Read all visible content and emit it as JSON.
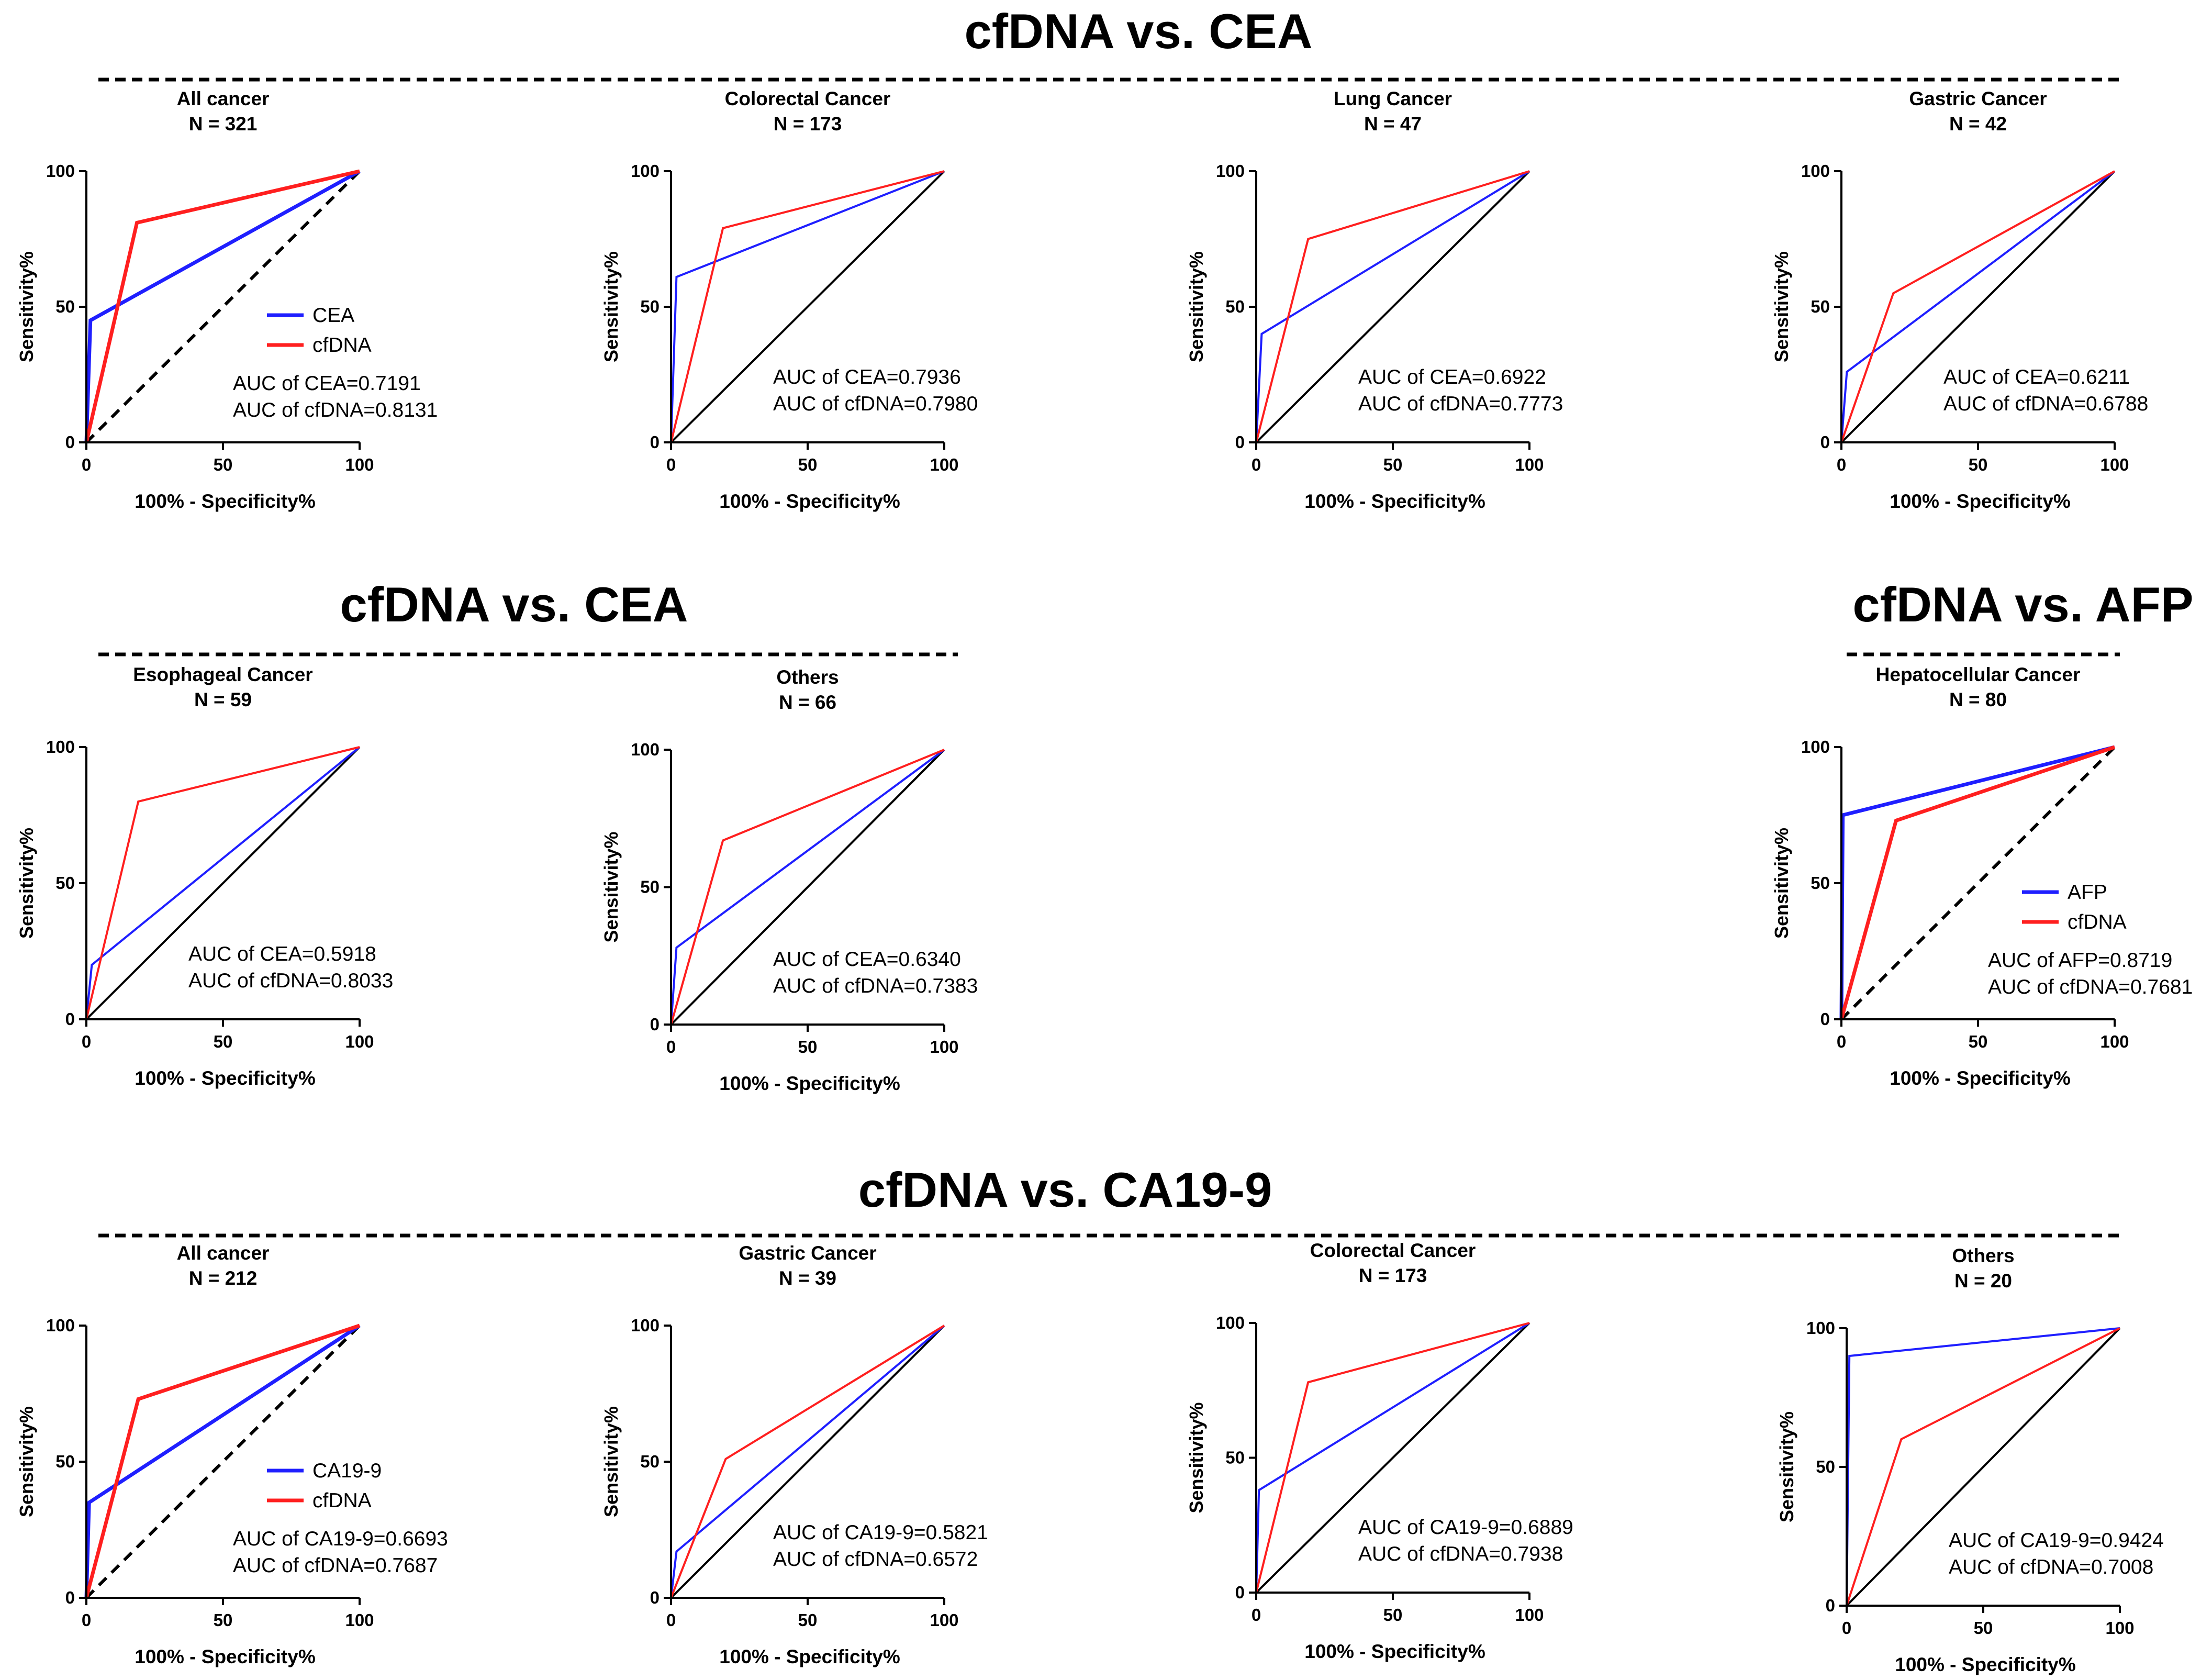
{
  "colors": {
    "cea": "#1f1fff",
    "cfdna": "#ff1f1f",
    "ref": "#000000"
  },
  "sections": [
    {
      "title": "cfDNA vs. CEA"
    },
    {
      "title": "cfDNA vs. CEA"
    },
    {
      "title": "cfDNA vs. AFP"
    },
    {
      "title": "cfDNA vs. CA19-9"
    }
  ],
  "chart_data": [
    {
      "type": "line",
      "section": 0,
      "title": "All cancer",
      "n": "N = 321",
      "xlabel": "100% - Specificity%",
      "ylabel": "Sensitivity%",
      "xlim": [
        0,
        100
      ],
      "ylim": [
        0,
        100
      ],
      "x_ticks": [
        "0",
        "50",
        "100"
      ],
      "y_ticks": [
        "0",
        "50",
        "100"
      ],
      "diagonal": "dashed",
      "thick": true,
      "series": [
        {
          "name": "CEA",
          "color": "#1f1fff",
          "x": [
            0,
            1.5,
            100
          ],
          "y": [
            0,
            45,
            100
          ]
        },
        {
          "name": "cfDNA",
          "color": "#ff1f1f",
          "x": [
            0,
            18.5,
            100
          ],
          "y": [
            0,
            81,
            100
          ]
        }
      ],
      "legend": [
        "CEA",
        "cfDNA"
      ],
      "auc": [
        "AUC of CEA=0.7191",
        "AUC of cfDNA=0.8131"
      ]
    },
    {
      "type": "line",
      "section": 0,
      "title": "Colorectal Cancer",
      "n": "N = 173",
      "xlabel": "100% - Specificity%",
      "ylabel": "Sensitivity%",
      "xlim": [
        0,
        100
      ],
      "ylim": [
        0,
        100
      ],
      "x_ticks": [
        "0",
        "50",
        "100"
      ],
      "y_ticks": [
        "0",
        "50",
        "100"
      ],
      "diagonal": "solid",
      "thick": false,
      "series": [
        {
          "name": "CEA",
          "color": "#1f1fff",
          "x": [
            0,
            2,
            100
          ],
          "y": [
            0,
            61,
            100
          ]
        },
        {
          "name": "cfDNA",
          "color": "#ff1f1f",
          "x": [
            0,
            19,
            100
          ],
          "y": [
            0,
            79,
            100
          ]
        }
      ],
      "legend": [],
      "auc": [
        "AUC of CEA=0.7936",
        "AUC of cfDNA=0.7980"
      ]
    },
    {
      "type": "line",
      "section": 0,
      "title": "Lung Cancer",
      "n": "N = 47",
      "xlabel": "100% - Specificity%",
      "ylabel": "Sensitivity%",
      "xlim": [
        0,
        100
      ],
      "ylim": [
        0,
        100
      ],
      "x_ticks": [
        "0",
        "50",
        "100"
      ],
      "y_ticks": [
        "0",
        "50",
        "100"
      ],
      "diagonal": "solid",
      "thick": false,
      "series": [
        {
          "name": "CEA",
          "color": "#1f1fff",
          "x": [
            0,
            2,
            100
          ],
          "y": [
            0,
            40,
            100
          ]
        },
        {
          "name": "cfDNA",
          "color": "#ff1f1f",
          "x": [
            0,
            19,
            100
          ],
          "y": [
            0,
            75,
            100
          ]
        }
      ],
      "legend": [],
      "auc": [
        "AUC of CEA=0.6922",
        "AUC of cfDNA=0.7773"
      ]
    },
    {
      "type": "line",
      "section": 0,
      "title": "Gastric Cancer",
      "n": "N = 42",
      "xlabel": "100% - Specificity%",
      "ylabel": "Sensitivity%",
      "xlim": [
        0,
        100
      ],
      "ylim": [
        0,
        100
      ],
      "x_ticks": [
        "0",
        "50",
        "100"
      ],
      "y_ticks": [
        "0",
        "50",
        "100"
      ],
      "diagonal": "solid",
      "thick": false,
      "series": [
        {
          "name": "CEA",
          "color": "#1f1fff",
          "x": [
            0,
            2,
            100
          ],
          "y": [
            0,
            26,
            100
          ]
        },
        {
          "name": "cfDNA",
          "color": "#ff1f1f",
          "x": [
            0,
            19,
            100
          ],
          "y": [
            0,
            55,
            100
          ]
        }
      ],
      "legend": [],
      "auc": [
        "AUC of CEA=0.6211",
        "AUC of cfDNA=0.6788"
      ]
    },
    {
      "type": "line",
      "section": 1,
      "title": "Esophageal Cancer",
      "n": "N = 59",
      "xlabel": "100% - Specificity%",
      "ylabel": "Sensitivity%",
      "xlim": [
        0,
        100
      ],
      "ylim": [
        0,
        100
      ],
      "x_ticks": [
        "0",
        "50",
        "100"
      ],
      "y_ticks": [
        "0",
        "50",
        "100"
      ],
      "diagonal": "solid",
      "thick": false,
      "series": [
        {
          "name": "CEA",
          "color": "#1f1fff",
          "x": [
            0,
            2,
            100
          ],
          "y": [
            0,
            20,
            100
          ]
        },
        {
          "name": "cfDNA",
          "color": "#ff1f1f",
          "x": [
            0,
            19,
            100
          ],
          "y": [
            0,
            80,
            100
          ]
        }
      ],
      "legend": [],
      "auc": [
        "AUC of CEA=0.5918",
        "AUC of cfDNA=0.8033"
      ]
    },
    {
      "type": "line",
      "section": 1,
      "title": "Others",
      "n": "N = 66",
      "xlabel": "100% - Specificity%",
      "ylabel": "Sensitivity%",
      "xlim": [
        0,
        100
      ],
      "ylim": [
        0,
        100
      ],
      "x_ticks": [
        "0",
        "50",
        "100"
      ],
      "y_ticks": [
        "0",
        "50",
        "100"
      ],
      "diagonal": "solid",
      "thick": false,
      "series": [
        {
          "name": "CEA",
          "color": "#1f1fff",
          "x": [
            0,
            2,
            100
          ],
          "y": [
            0,
            28,
            100
          ]
        },
        {
          "name": "cfDNA",
          "color": "#ff1f1f",
          "x": [
            0,
            19,
            100
          ],
          "y": [
            0,
            67,
            100
          ]
        }
      ],
      "legend": [],
      "auc": [
        "AUC of CEA=0.6340",
        "AUC of cfDNA=0.7383"
      ]
    },
    {
      "type": "line",
      "section": 2,
      "title": "Hepatocellular Cancer",
      "n": "N = 80",
      "xlabel": "100% - Specificity%",
      "ylabel": "Sensitivity%",
      "xlim": [
        0,
        100
      ],
      "ylim": [
        0,
        100
      ],
      "x_ticks": [
        "0",
        "50",
        "100"
      ],
      "y_ticks": [
        "0",
        "50",
        "100"
      ],
      "diagonal": "dashed",
      "thick": true,
      "series": [
        {
          "name": "AFP",
          "color": "#1f1fff",
          "x": [
            0,
            0.5,
            100
          ],
          "y": [
            0,
            75,
            100
          ]
        },
        {
          "name": "cfDNA",
          "color": "#ff1f1f",
          "x": [
            0,
            20,
            100
          ],
          "y": [
            0,
            73,
            100
          ]
        }
      ],
      "legend": [
        "AFP",
        "cfDNA"
      ],
      "auc": [
        "AUC of AFP=0.8719",
        "AUC of cfDNA=0.7681"
      ]
    },
    {
      "type": "line",
      "section": 3,
      "title": "All cancer",
      "n": "N = 212",
      "xlabel": "100% - Specificity%",
      "ylabel": "Sensitivity%",
      "xlim": [
        0,
        100
      ],
      "ylim": [
        0,
        100
      ],
      "x_ticks": [
        "0",
        "50",
        "100"
      ],
      "y_ticks": [
        "0",
        "50",
        "100"
      ],
      "diagonal": "dashed",
      "thick": true,
      "series": [
        {
          "name": "CA19-9",
          "color": "#1f1fff",
          "x": [
            0,
            1,
            100
          ],
          "y": [
            0,
            35,
            100
          ]
        },
        {
          "name": "cfDNA",
          "color": "#ff1f1f",
          "x": [
            0,
            19,
            100
          ],
          "y": [
            0,
            73,
            100
          ]
        }
      ],
      "legend": [
        "CA19-9",
        "cfDNA"
      ],
      "auc": [
        "AUC of CA19-9=0.6693",
        "AUC of cfDNA=0.7687"
      ]
    },
    {
      "type": "line",
      "section": 3,
      "title": "Gastric Cancer",
      "n": "N = 39",
      "xlabel": "100% - Specificity%",
      "ylabel": "Sensitivity%",
      "xlim": [
        0,
        100
      ],
      "ylim": [
        0,
        100
      ],
      "x_ticks": [
        "0",
        "50",
        "100"
      ],
      "y_ticks": [
        "0",
        "50",
        "100"
      ],
      "diagonal": "solid",
      "thick": false,
      "series": [
        {
          "name": "CA19-9",
          "color": "#1f1fff",
          "x": [
            0,
            2,
            100
          ],
          "y": [
            0,
            17,
            100
          ]
        },
        {
          "name": "cfDNA",
          "color": "#ff1f1f",
          "x": [
            0,
            20,
            100
          ],
          "y": [
            0,
            51,
            100
          ]
        }
      ],
      "legend": [],
      "auc": [
        "AUC of CA19-9=0.5821",
        "AUC of cfDNA=0.6572"
      ]
    },
    {
      "type": "line",
      "section": 3,
      "title": "Colorectal Cancer",
      "n": "N = 173",
      "xlabel": "100% - Specificity%",
      "ylabel": "Sensitivity%",
      "xlim": [
        0,
        100
      ],
      "ylim": [
        0,
        100
      ],
      "x_ticks": [
        "0",
        "50",
        "100"
      ],
      "y_ticks": [
        "0",
        "50",
        "100"
      ],
      "diagonal": "solid",
      "thick": false,
      "series": [
        {
          "name": "CA19-9",
          "color": "#1f1fff",
          "x": [
            0,
            1,
            100
          ],
          "y": [
            0,
            38,
            100
          ]
        },
        {
          "name": "cfDNA",
          "color": "#ff1f1f",
          "x": [
            0,
            19,
            100
          ],
          "y": [
            0,
            78,
            100
          ]
        }
      ],
      "legend": [],
      "auc": [
        "AUC of CA19-9=0.6889",
        "AUC of cfDNA=0.7938"
      ]
    },
    {
      "type": "line",
      "section": 3,
      "title": "Others",
      "n": "N = 20",
      "xlabel": "100% - Specificity%",
      "ylabel": "Sensitivity%",
      "xlim": [
        0,
        100
      ],
      "ylim": [
        0,
        100
      ],
      "x_ticks": [
        "0",
        "50",
        "100"
      ],
      "y_ticks": [
        "0",
        "50",
        "100"
      ],
      "diagonal": "solid",
      "thick": false,
      "series": [
        {
          "name": "CA19-9",
          "color": "#1f1fff",
          "x": [
            0,
            1,
            100
          ],
          "y": [
            0,
            90,
            100
          ]
        },
        {
          "name": "cfDNA",
          "color": "#ff1f1f",
          "x": [
            0,
            20,
            100
          ],
          "y": [
            0,
            60,
            100
          ]
        }
      ],
      "legend": [],
      "auc": [
        "AUC of CA19-9=0.9424",
        "AUC of cfDNA=0.7008"
      ]
    }
  ]
}
